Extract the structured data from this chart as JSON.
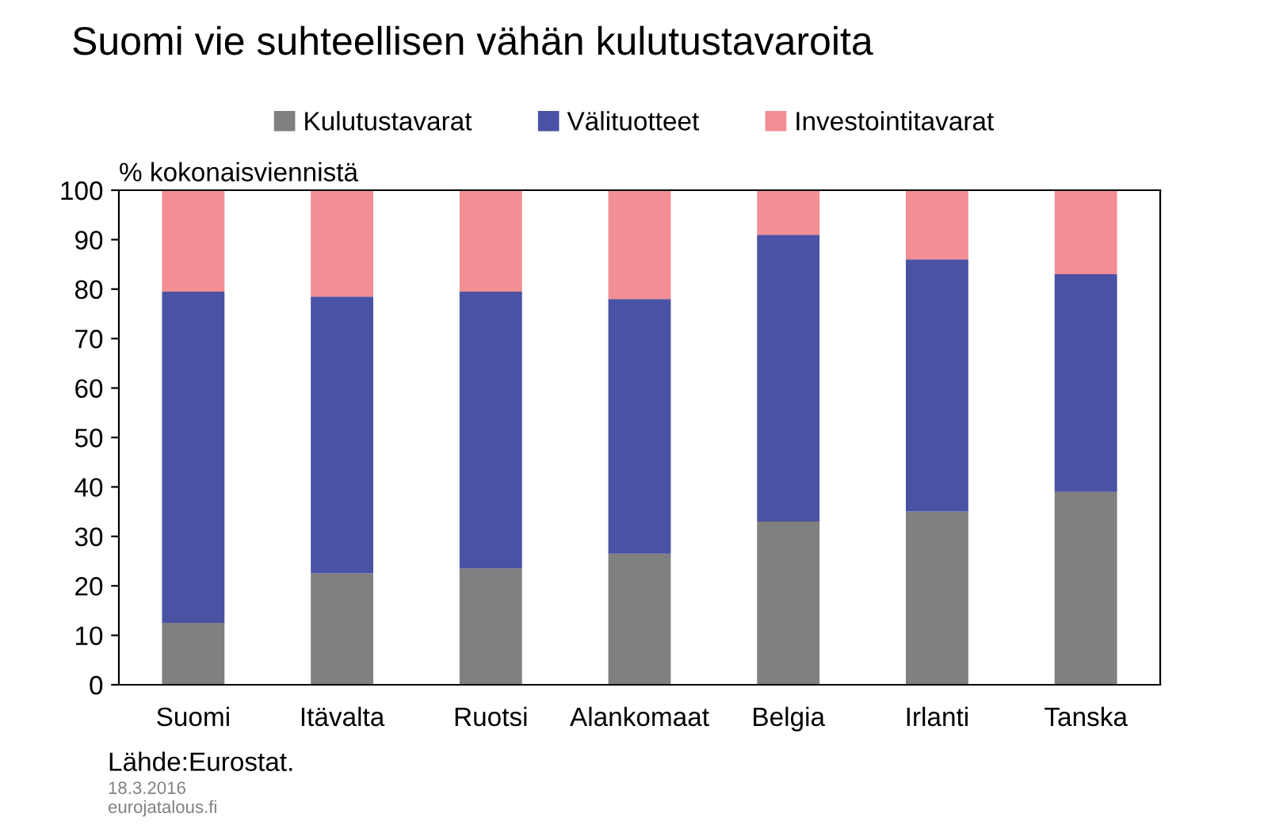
{
  "chart_data": {
    "type": "bar",
    "title": "Suomi vie suhteellisen vähän kulutustavaroita",
    "ylabel": "% kokonaisviennistä",
    "categories": [
      "Suomi",
      "Itävalta",
      "Ruotsi",
      "Alankomaat",
      "Belgia",
      "Irlanti",
      "Tanska"
    ],
    "stacked": true,
    "series": [
      {
        "name": "Kulutustavarat",
        "color": "#808080",
        "values": [
          12.5,
          22.5,
          23.5,
          26.5,
          33,
          35,
          39
        ]
      },
      {
        "name": "Välituotteet",
        "color": "#4a52a3",
        "values": [
          67,
          56,
          56,
          51.5,
          58,
          51,
          44
        ]
      },
      {
        "name": "Investointitavarat",
        "color": "#f28e94",
        "values": [
          20.5,
          21.5,
          20.5,
          22,
          9,
          14,
          17
        ]
      }
    ],
    "ylim": [
      0,
      100
    ],
    "yticks": [
      0,
      10,
      20,
      30,
      40,
      50,
      60,
      70,
      80,
      90,
      100
    ],
    "grid": false,
    "legend": "top",
    "annotations": [
      "Lähde:Eurostat.",
      "18.3.2016",
      "eurojatalous.fi"
    ]
  }
}
